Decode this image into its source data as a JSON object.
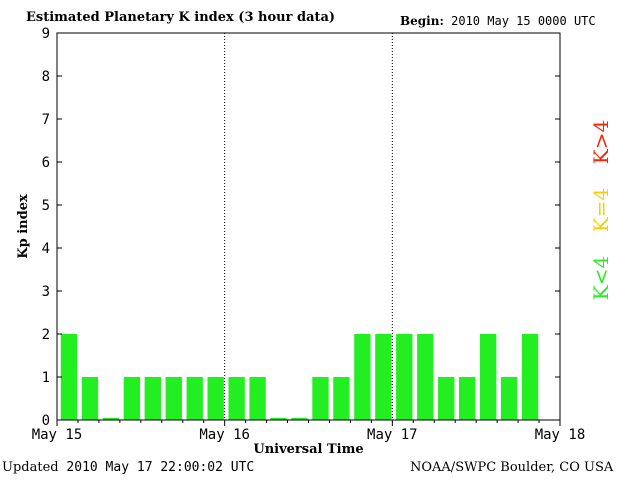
{
  "header": {
    "title": "Estimated Planetary K index (3 hour data)",
    "begin_label": "Begin:",
    "begin_value": "2010 May 15 0000 UTC"
  },
  "footer": {
    "updated_label": "Updated",
    "updated_value": "2010 May 17 22:00:02 UTC",
    "credit": "NOAA/SWPC Boulder, CO USA"
  },
  "chart_data": {
    "type": "bar",
    "xlabel": "Universal Time",
    "ylabel": "Kp index",
    "ylim": [
      0,
      9
    ],
    "yticks": [
      0,
      1,
      2,
      3,
      4,
      5,
      6,
      7,
      8,
      9
    ],
    "xticks": [
      "May 15",
      "May 16",
      "May 17",
      "May 18"
    ],
    "bars_per_day": 8,
    "values": [
      2,
      1,
      0.05,
      1,
      1,
      1,
      1,
      1,
      1,
      1,
      0.05,
      0.05,
      1,
      1,
      2,
      2,
      2,
      2,
      1,
      1,
      2,
      1,
      2
    ],
    "legend": [
      {
        "label": "K<4",
        "color": "#22ee22"
      },
      {
        "label": "K=4",
        "color": "#ffcc00"
      },
      {
        "label": "K>4",
        "color": "#ff2200"
      }
    ],
    "colors": {
      "low": "#22ee22",
      "mid": "#ffcc00",
      "high": "#ff2200"
    }
  }
}
